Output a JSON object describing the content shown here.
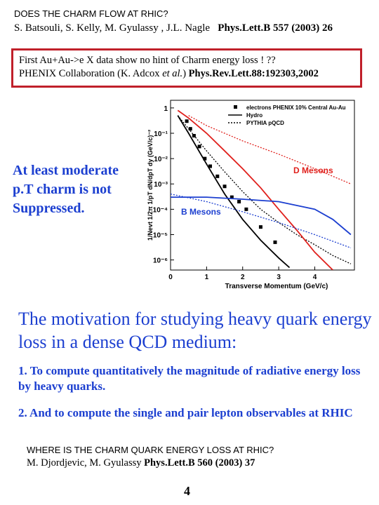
{
  "header": {
    "title": "DOES THE CHARM FLOW AT RHIC?",
    "authors": "S. Batsouli, S. Kelly, M. Gyulassy , J.L. Nagle",
    "journal": "Phys.Lett.B 557 (2003) 26"
  },
  "box": {
    "line1": "First Au+Au->e X data show no hint of Charm energy loss ! ??",
    "line2_start": "PHENIX Collaboration (K. Adcox",
    "line2_etal": "et al.",
    "line2_end": ")",
    "line2_journal": "Phys.Rev.Lett.88:192303,2002"
  },
  "side_note": [
    "At least moderate",
    "p.T charm is not",
    "Suppressed."
  ],
  "chart_data": {
    "type": "line",
    "x_label": "Transverse Momentum (GeV/c)",
    "y_label": "1/Nevt 1/2π 1/pT dN/dpT dy (GeV/c)⁻²",
    "log_y": true,
    "xlim": [
      0,
      5.1
    ],
    "xticks": [
      0,
      1,
      2,
      3,
      4
    ],
    "ylim": [
      4e-07,
      2
    ],
    "yticks": [
      1,
      {
        "value": 0.1,
        "label": "10⁻¹"
      },
      {
        "value": 0.01,
        "label": "10⁻²"
      },
      {
        "value": 0.001,
        "label": "10⁻³"
      },
      {
        "value": 0.0001,
        "label": "10⁻⁴"
      },
      {
        "value": 1e-05,
        "label": "10⁻⁵"
      },
      {
        "value": 1e-06,
        "label": "10⁻⁶"
      }
    ],
    "series": [
      {
        "name": "electrons PHENIX 10% Central Au-Au",
        "kind": "points",
        "color": "#000000",
        "x": [
          0.45,
          0.55,
          0.65,
          0.8,
          0.95,
          1.1,
          1.3,
          1.5,
          1.7,
          1.9,
          2.1,
          2.5,
          2.9
        ],
        "values": [
          0.3,
          0.15,
          0.08,
          0.03,
          0.01,
          0.005,
          0.002,
          0.0008,
          0.0003,
          0.0002,
          0.0001,
          2e-05,
          5e-06
        ]
      },
      {
        "name": "Hydro",
        "kind": "solid",
        "color": "#000000",
        "x": [
          0.2,
          0.5,
          1,
          1.5,
          2,
          2.5,
          3,
          3.3
        ],
        "values": [
          0.5,
          0.1,
          0.006,
          0.0004,
          4e-05,
          6e-06,
          1.2e-06,
          5e-07
        ]
      },
      {
        "name": "PYTHIA pQCD",
        "kind": "dotted",
        "color": "#000000",
        "x": [
          0.2,
          0.5,
          1,
          1.5,
          2,
          2.5,
          3,
          3.5,
          4,
          4.5,
          5
        ],
        "values": [
          0.5,
          0.15,
          0.02,
          0.003,
          0.0005,
          0.0001,
          3e-05,
          1e-05,
          4e-06,
          1.5e-06,
          7e-07
        ]
      },
      {
        "kind": "solid",
        "color": "#e0201c",
        "x": [
          0.2,
          0.5,
          1,
          1.5,
          2,
          2.5,
          3,
          3.5,
          4,
          4.5
        ],
        "values": [
          0.8,
          0.4,
          0.1,
          0.02,
          0.004,
          0.0007,
          0.0001,
          1.5e-05,
          2e-06,
          4e-07
        ]
      },
      {
        "kind": "dotted",
        "color": "#e0201c",
        "x": [
          0.5,
          1,
          2,
          3,
          4,
          5
        ],
        "values": [
          0.5,
          0.2,
          0.05,
          0.015,
          0.004,
          0.001
        ]
      },
      {
        "kind": "solid",
        "color": "#1c3fd0",
        "x": [
          0,
          1,
          2,
          3,
          4,
          4.5,
          5
        ],
        "values": [
          0.0003,
          0.0003,
          0.00025,
          0.0002,
          0.0001,
          4e-05,
          1e-05
        ]
      },
      {
        "kind": "dotted",
        "color": "#1c3fd0",
        "x": [
          0,
          1,
          2,
          3,
          4,
          5
        ],
        "values": [
          0.0004,
          0.0002,
          8e-05,
          3e-05,
          1e-05,
          3e-06
        ]
      }
    ],
    "annotations": [
      {
        "text": "D Mesons",
        "color": "#e0201c"
      },
      {
        "text": "B Mesons",
        "color": "#1c3fd0"
      }
    ]
  },
  "motivation": {
    "heading": "The motivation for studying heavy quark energy loss in a dense QCD medium:",
    "items": [
      "1. To compute quantitatively the magnitude of radiative energy loss by heavy quarks.",
      "2.  And to compute the single and pair lepton observables at RHIC"
    ]
  },
  "footer": {
    "title": "WHERE IS THE CHARM QUARK ENERGY LOSS AT RHIC?",
    "authors": "M. Djordjevic, M. Gyulassy",
    "journal": "Phys.Lett.B 560 (2003) 37"
  },
  "page_number": "4"
}
